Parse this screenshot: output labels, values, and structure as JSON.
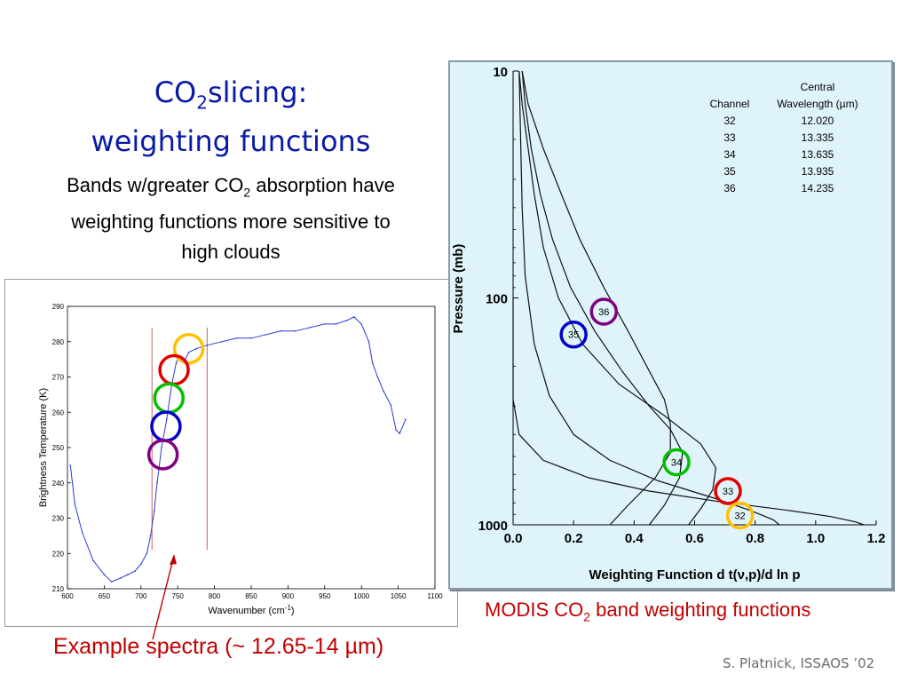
{
  "slide": {
    "title_line1_pre": "CO",
    "title_line1_sub": "2",
    "title_line1_post": "slicing:",
    "title_line2": "weighting functions",
    "subtitle_pre": "Bands w/greater CO",
    "subtitle_sub": "2",
    "subtitle_post": " absorption have weighting functions more sensitive to high clouds",
    "caption_right_pre": "MODIS CO",
    "caption_right_sub": "2",
    "caption_right_post": " band weighting functions",
    "caption_left": "Example spectra (~ 12.65-14 µm)",
    "credit": "S. Platnick, ISSAOS ’02"
  },
  "chart_data": [
    {
      "type": "line",
      "xlabel_pre": "Wavenumber (cm",
      "xlabel_sup": "-1",
      "xlabel_post": ")",
      "ylabel": "Brightness Temperature (K)",
      "xlim": [
        600,
        1100
      ],
      "ylim": [
        210,
        290
      ],
      "xticks": [
        600,
        650,
        700,
        750,
        800,
        850,
        900,
        950,
        1000,
        1050,
        1100
      ],
      "yticks": [
        210,
        220,
        230,
        240,
        250,
        260,
        270,
        280,
        290
      ],
      "vlines": [
        715,
        790
      ],
      "series": [
        {
          "x": [
            604,
            610,
            620,
            635,
            650,
            660,
            672,
            682,
            692,
            700,
            708,
            713,
            718,
            722,
            728,
            735,
            742,
            748,
            752,
            758,
            765,
            775,
            790,
            810,
            830,
            850,
            870,
            890,
            910,
            930,
            950,
            965,
            980,
            990,
            1000,
            1010,
            1015,
            1022,
            1030,
            1040,
            1047,
            1052,
            1060
          ],
          "y": [
            245,
            234,
            226,
            218,
            214,
            212,
            213,
            214,
            215,
            217,
            220,
            225,
            232,
            240,
            250,
            258,
            268,
            274,
            276,
            274,
            277,
            278,
            279,
            280,
            281,
            281,
            282,
            283,
            283,
            284,
            285,
            285,
            286,
            287,
            285,
            280,
            274,
            270,
            266,
            262,
            255,
            254,
            258
          ]
        }
      ],
      "annotations": [
        {
          "label": "circle",
          "color": "#ffc000",
          "x": 765,
          "y": 278
        },
        {
          "label": "circle",
          "color": "#e00000",
          "x": 745,
          "y": 272
        },
        {
          "label": "circle",
          "color": "#00c000",
          "x": 738,
          "y": 264
        },
        {
          "label": "circle",
          "color": "#0000cc",
          "x": 734,
          "y": 256
        },
        {
          "label": "circle",
          "color": "#800080",
          "x": 730,
          "y": 248
        }
      ]
    },
    {
      "type": "line",
      "xlabel": "Weighting Function d t(ν,p)/d ln p",
      "ylabel": "Pressure (mb)",
      "xlim": [
        0.0,
        1.2
      ],
      "ylim": [
        1000,
        10
      ],
      "yscale": "log",
      "xticks": [
        "0.0",
        "0.2",
        "0.4",
        "0.6",
        "0.8",
        "1.0",
        "1.2"
      ],
      "yticks": [
        "10",
        "100",
        "1000"
      ],
      "legend_table": {
        "header1": "Central",
        "col1": "Channel",
        "col2": "Wavelength (µm)",
        "rows": [
          [
            "32",
            "12.020"
          ],
          [
            "33",
            "13.335"
          ],
          [
            "34",
            "13.635"
          ],
          [
            "35",
            "13.935"
          ],
          [
            "36",
            "14.235"
          ]
        ]
      },
      "series": [
        {
          "name": "36",
          "x": [
            0.03,
            0.05,
            0.1,
            0.16,
            0.22,
            0.3,
            0.38,
            0.45,
            0.5,
            0.52,
            0.52,
            0.47,
            0.38,
            0.32
          ],
          "y": [
            10,
            14,
            22,
            35,
            55,
            90,
            140,
            210,
            280,
            360,
            480,
            620,
            820,
            1000
          ]
        },
        {
          "name": "35",
          "x": [
            0.03,
            0.04,
            0.06,
            0.09,
            0.13,
            0.19,
            0.27,
            0.36,
            0.45,
            0.52,
            0.56,
            0.55,
            0.5,
            0.45
          ],
          "y": [
            10,
            14,
            22,
            35,
            55,
            90,
            140,
            210,
            300,
            380,
            480,
            620,
            820,
            1000
          ]
        },
        {
          "name": "34",
          "x": [
            0.02,
            0.03,
            0.05,
            0.07,
            0.1,
            0.15,
            0.23,
            0.35,
            0.5,
            0.62,
            0.67,
            0.66,
            0.62,
            0.58
          ],
          "y": [
            10,
            14,
            22,
            35,
            60,
            100,
            160,
            240,
            330,
            440,
            560,
            700,
            850,
            1000
          ]
        },
        {
          "name": "33",
          "x": [
            0.02,
            0.025,
            0.03,
            0.04,
            0.07,
            0.12,
            0.2,
            0.32,
            0.48,
            0.66,
            0.78,
            0.86,
            0.88
          ],
          "y": [
            10,
            20,
            40,
            80,
            160,
            270,
            400,
            520,
            640,
            760,
            860,
            950,
            1000
          ]
        },
        {
          "name": "32",
          "x": [
            0.0,
            0.0,
            0.02,
            0.1,
            0.25,
            0.45,
            0.68,
            0.9,
            1.05,
            1.13,
            1.16
          ],
          "y": [
            100,
            280,
            400,
            520,
            620,
            710,
            790,
            860,
            920,
            970,
            1000
          ]
        }
      ],
      "annotations": [
        {
          "label": "36",
          "color": "#800080",
          "x": 0.3,
          "y": 115
        },
        {
          "label": "35",
          "color": "#0000cc",
          "x": 0.2,
          "y": 145
        },
        {
          "label": "34",
          "color": "#00c000",
          "x": 0.54,
          "y": 530
        },
        {
          "label": "33",
          "color": "#e00000",
          "x": 0.71,
          "y": 710
        },
        {
          "label": "32",
          "color": "#ffc000",
          "x": 0.75,
          "y": 910
        }
      ]
    }
  ]
}
